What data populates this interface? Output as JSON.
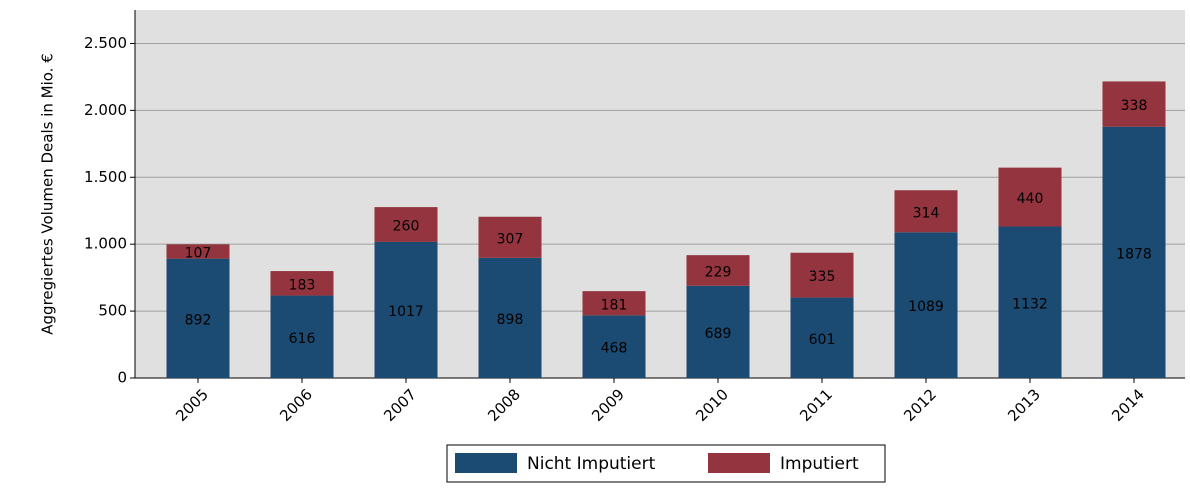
{
  "chart_data": {
    "type": "stacked_bar",
    "y_label": "Aggregiertes Volumen Deals in Mio. €",
    "categories": [
      "2005",
      "2006",
      "2007",
      "2008",
      "2009",
      "2010",
      "2011",
      "2012",
      "2013",
      "2014"
    ],
    "series": [
      {
        "name": "Nicht Imputiert",
        "color": "#1b4a72",
        "values": [
          892,
          616,
          1017,
          898,
          468,
          689,
          601,
          1089,
          1132,
          1878
        ]
      },
      {
        "name": "Imputiert",
        "color": "#93343e",
        "values": [
          107,
          183,
          260,
          307,
          181,
          229,
          335,
          314,
          440,
          338
        ]
      }
    ],
    "ylim": [
      0,
      2750
    ],
    "yticks": [
      0,
      500,
      {
        "value": 1000,
        "label": "1.000"
      },
      {
        "value": 1500,
        "label": "1.500"
      },
      {
        "value": 2000,
        "label": "2.000"
      },
      {
        "value": 2500,
        "label": "2.500"
      }
    ],
    "grid": true
  }
}
